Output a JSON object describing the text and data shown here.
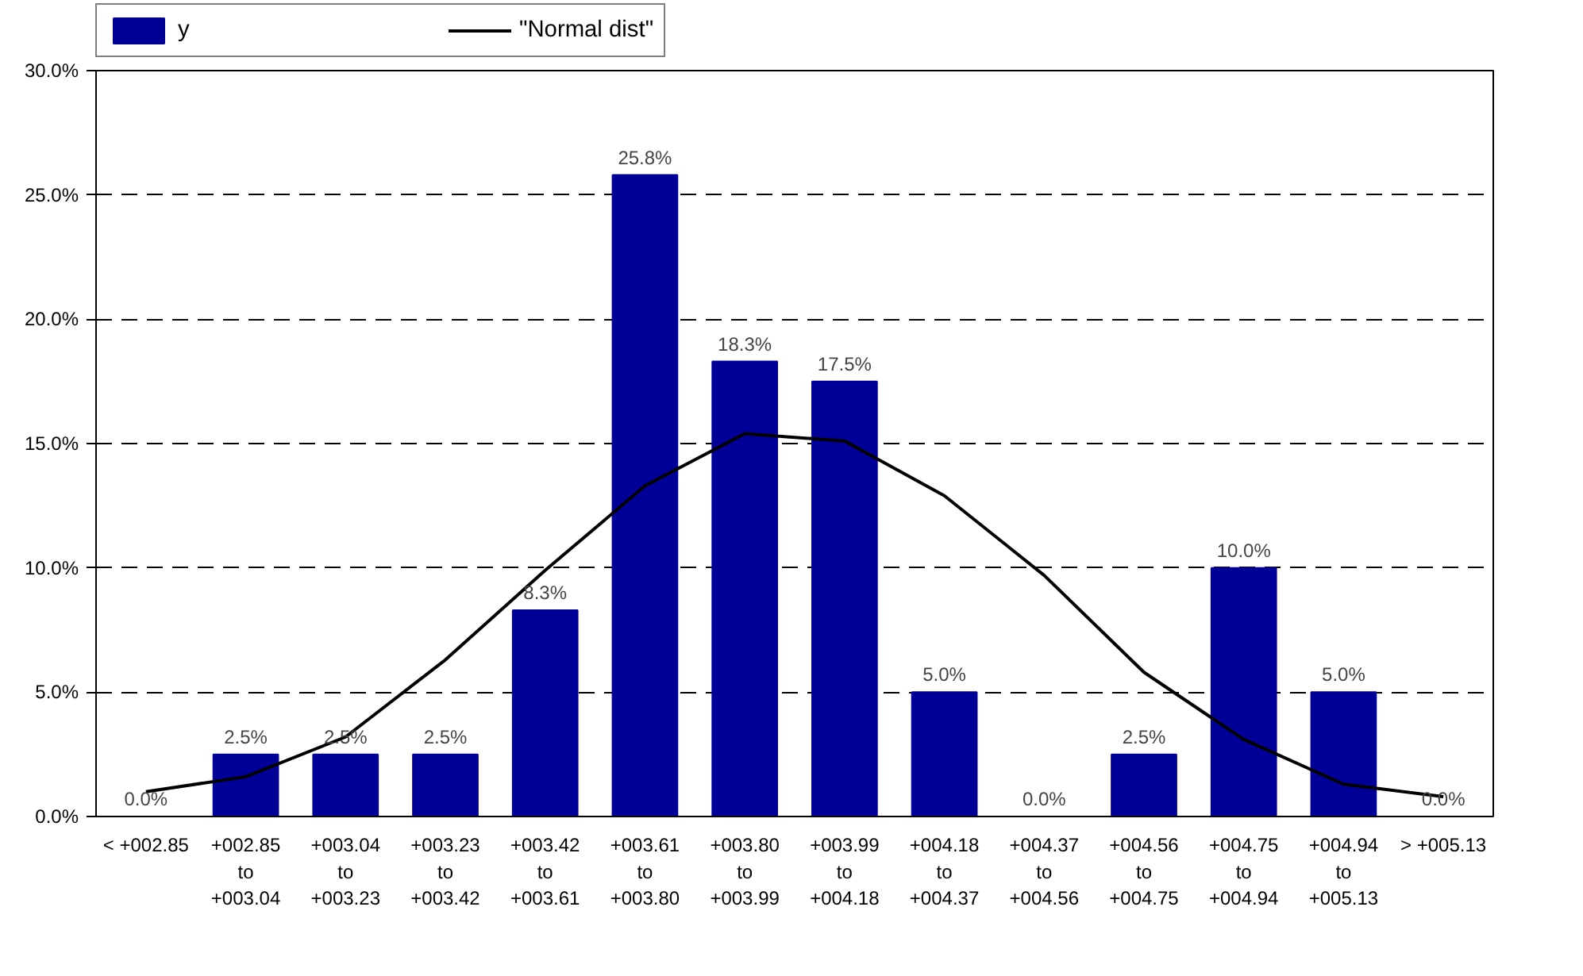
{
  "chart_data": {
    "type": "bar",
    "categories": [
      "< +002.85",
      "+002.85\nto\n+003.04",
      "+003.04\nto\n+003.23",
      "+003.23\nto\n+003.42",
      "+003.42\nto\n+003.61",
      "+003.61\nto\n+003.80",
      "+003.80\nto\n+003.99",
      "+003.99\nto\n+004.18",
      "+004.18\nto\n+004.37",
      "+004.37\nto\n+004.56",
      "+004.56\nto\n+004.75",
      "+004.75\nto\n+004.94",
      "+004.94\nto\n+005.13",
      "> +005.13"
    ],
    "series": [
      {
        "name": "y",
        "type": "bar",
        "color": "#000099",
        "values": [
          0.0,
          2.5,
          2.5,
          2.5,
          8.3,
          25.8,
          18.3,
          17.5,
          5.0,
          0.0,
          2.5,
          10.0,
          5.0,
          0.0
        ],
        "value_labels": [
          "0.0%",
          "2.5%",
          "2.5%",
          "2.5%",
          "8.3%",
          "25.8%",
          "18.3%",
          "17.5%",
          "5.0%",
          "0.0%",
          "2.5%",
          "10.0%",
          "5.0%",
          "0.0%"
        ]
      },
      {
        "name": "\"Normal dist\"",
        "type": "line",
        "color": "#000000",
        "values": [
          1.0,
          1.6,
          3.2,
          6.3,
          9.9,
          13.3,
          15.4,
          15.1,
          12.9,
          9.7,
          5.8,
          3.1,
          1.3,
          0.8
        ]
      }
    ],
    "ylim": [
      0,
      30
    ],
    "yticks": [
      {
        "value": 0,
        "label": "0.0%"
      },
      {
        "value": 5,
        "label": "5.0%"
      },
      {
        "value": 10,
        "label": "10.0%"
      },
      {
        "value": 15,
        "label": "15.0%"
      },
      {
        "value": 20,
        "label": "20.0%"
      },
      {
        "value": 25,
        "label": "25.0%"
      },
      {
        "value": 30,
        "label": "30.0%"
      }
    ],
    "grid": "y",
    "legend": "top",
    "line_style": "solid",
    "marker": "none"
  }
}
